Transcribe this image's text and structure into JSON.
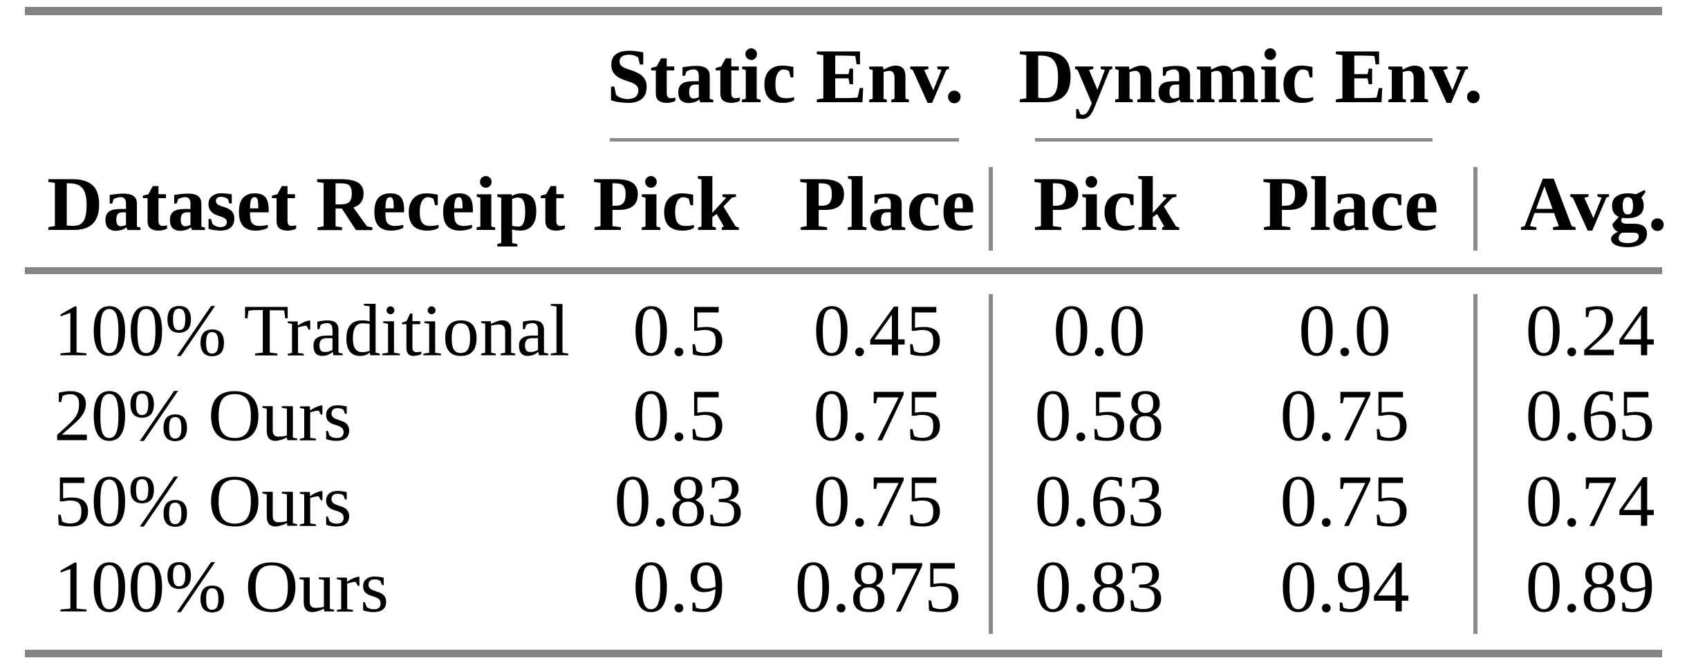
{
  "table": {
    "group_row": {
      "static_group": "Static Env.",
      "dynamic_group": "Dynamic Env."
    },
    "header_row": {
      "dataset": "Dataset Receipt",
      "static_pick": "Pick",
      "static_place": "Place",
      "dynamic_pick": "Pick",
      "dynamic_place": "Place",
      "avg": "Avg."
    },
    "rows": [
      {
        "label": "100% Traditional",
        "static_pick": "0.5",
        "static_place": "0.45",
        "dynamic_pick": "0.0",
        "dynamic_place": "0.0",
        "avg": "0.24"
      },
      {
        "label": "20% Ours",
        "static_pick": "0.5",
        "static_place": "0.75",
        "dynamic_pick": "0.58",
        "dynamic_place": "0.75",
        "avg": "0.65"
      },
      {
        "label": "50% Ours",
        "static_pick": "0.83",
        "static_place": "0.75",
        "dynamic_pick": "0.63",
        "dynamic_place": "0.75",
        "avg": "0.74"
      },
      {
        "label": "100% Ours",
        "static_pick": "0.9",
        "static_place": "0.875",
        "dynamic_pick": "0.83",
        "dynamic_place": "0.94",
        "avg": "0.89"
      }
    ],
    "colors": {
      "text": "#000000",
      "rule": "#848484",
      "separator": "#8a8a8a",
      "background": "#ffffff"
    }
  },
  "chart_data": {
    "type": "table",
    "column_groups": [
      "",
      "Static Env.",
      "Static Env.",
      "Dynamic Env.",
      "Dynamic Env.",
      ""
    ],
    "columns": [
      "Dataset Receipt",
      "Pick",
      "Place",
      "Pick",
      "Place",
      "Avg."
    ],
    "rows": [
      [
        "100% Traditional",
        0.5,
        0.45,
        0.0,
        0.0,
        0.24
      ],
      [
        "20% Ours",
        0.5,
        0.75,
        0.58,
        0.75,
        0.65
      ],
      [
        "50% Ours",
        0.83,
        0.75,
        0.63,
        0.75,
        0.74
      ],
      [
        "100% Ours",
        0.9,
        0.875,
        0.83,
        0.94,
        0.89
      ]
    ]
  }
}
